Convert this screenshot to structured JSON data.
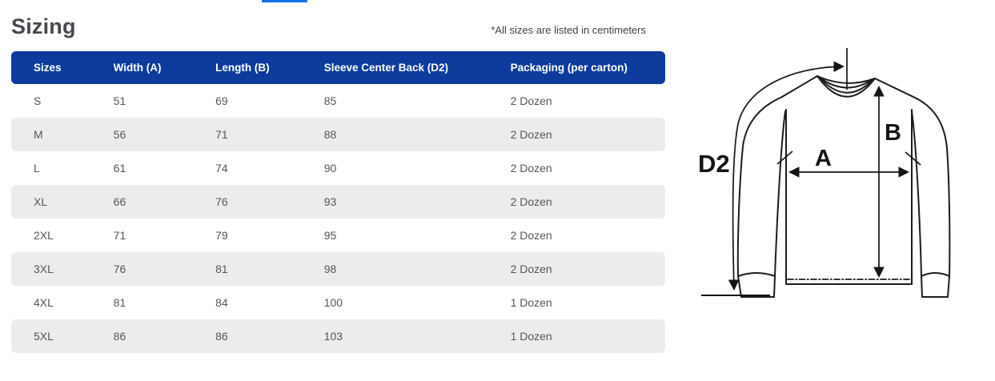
{
  "page": {
    "title": "Sizing",
    "note": "*All sizes are listed in centimeters"
  },
  "colors": {
    "header_bg": "#0c3b9d",
    "stripe_bg": "#ececec",
    "accent_bar": "#1774e8",
    "diagram_stroke": "#1c1c1c"
  },
  "table": {
    "headers": [
      "Sizes",
      "Width (A)",
      "Length (B)",
      "Sleeve Center Back (D2)",
      "Packaging (per carton)"
    ],
    "rows": [
      [
        "S",
        "51",
        "69",
        "85",
        "2 Dozen"
      ],
      [
        "M",
        "56",
        "71",
        "88",
        "2 Dozen"
      ],
      [
        "L",
        "61",
        "74",
        "90",
        "2 Dozen"
      ],
      [
        "XL",
        "66",
        "76",
        "93",
        "2 Dozen"
      ],
      [
        "2XL",
        "71",
        "79",
        "95",
        "2 Dozen"
      ],
      [
        "3XL",
        "76",
        "81",
        "98",
        "2 Dozen"
      ],
      [
        "4XL",
        "81",
        "84",
        "100",
        "1 Dozen"
      ],
      [
        "5XL",
        "86",
        "86",
        "103",
        "1 Dozen"
      ]
    ]
  },
  "diagram": {
    "labels": {
      "sleeve_center_back": "D2",
      "width": "A",
      "length": "B"
    }
  }
}
